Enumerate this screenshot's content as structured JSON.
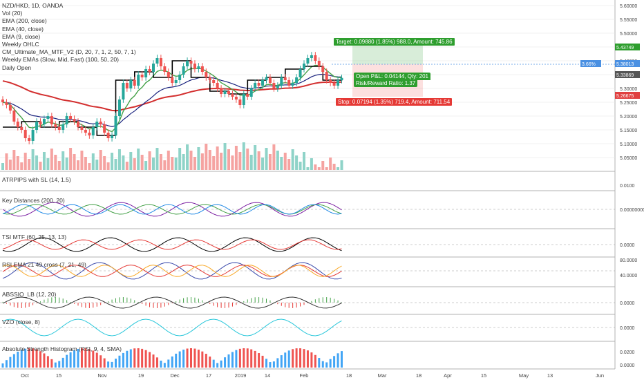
{
  "chart_data": {
    "type": "candlestick",
    "title": "NZD/HKD, 1D, OANDA",
    "main_legend": [
      "Vol (20)",
      "EMA (200, close)",
      "EMA (40, close)",
      "EMA (9, close)",
      "Weekly OHLC",
      "CM_Ultimate_MA_MTF_V2 (D, 20, 7, 1, 2, 50, 7, 1)",
      "Weekly EMAs (Slow, Mid, Fast) (100, 50, 20)",
      "Daily Open"
    ],
    "price_axis": [
      "5.60000",
      "5.55000",
      "5.50000",
      "5.45000",
      "5.40000",
      "5.35000",
      "5.30000",
      "5.25000",
      "5.20000",
      "5.15000",
      "5.10000",
      "5.05000"
    ],
    "price_labels": [
      {
        "text": "5.43749",
        "color": "#2e9e2e"
      },
      {
        "text": "5.38013",
        "color": "#4a90e2"
      },
      {
        "text": "3.66%",
        "color": "#4a90e2"
      },
      {
        "text": "5.33869",
        "color": "#555555"
      },
      {
        "text": "5.26675",
        "color": "#e04040"
      }
    ],
    "trade_tags": {
      "target": "Target: 0.09880 (1.85%) 988.0, Amount: 745.86",
      "open": "Open P&L: 0.04144, Qty: 201",
      "risk": "Risk/Reward Ratio: 1.37",
      "stop": "Stop: 0.07194 (1.35%) 719.4, Amount: 711.54"
    },
    "x_ticks": [
      "Oct",
      "15",
      "Nov",
      "19",
      "Dec",
      "17",
      "2019",
      "14",
      "Feb",
      "18",
      "Mar",
      "18",
      "Apr",
      "15",
      "May",
      "13",
      "Jun"
    ],
    "indicator_panels": [
      {
        "name": "ATRPIPS with SL (14, 1.5)",
        "axis": [
          "0.0100"
        ]
      },
      {
        "name": "Key Distances (200, 20)",
        "axis": [
          "0.00000000"
        ]
      },
      {
        "name": "TSI MTF (60, 25, 13, 13)",
        "axis": [
          "0.0000"
        ]
      },
      {
        "name": "RSI EMA 21 49 cross (7, 21, 49)",
        "axis": [
          "80.0000",
          "40.0000"
        ]
      },
      {
        "name": "ABSSIO_LB (12, 20)",
        "axis": [
          "0.0000"
        ]
      },
      {
        "name": "VZO (close, 8)",
        "axis": [
          "0.0000"
        ]
      },
      {
        "name": "Absolute Strength Histogram (RSI, 9, 4, SMA)",
        "axis": [
          "0.0200",
          "0.0000"
        ]
      }
    ],
    "ylim": [
      5.02,
      5.62
    ],
    "closes": [
      5.25,
      5.24,
      5.22,
      5.18,
      5.16,
      5.15,
      5.12,
      5.11,
      5.15,
      5.18,
      5.17,
      5.19,
      5.2,
      5.17,
      5.16,
      5.15,
      5.17,
      5.2,
      5.19,
      5.18,
      5.16,
      5.15,
      5.14,
      5.13,
      5.16,
      5.18,
      5.17,
      5.14,
      5.12,
      5.13,
      5.2,
      5.26,
      5.32,
      5.3,
      5.33,
      5.31,
      5.35,
      5.34,
      5.37,
      5.36,
      5.39,
      5.41,
      5.38,
      5.36,
      5.34,
      5.32,
      5.33,
      5.35,
      5.38,
      5.4,
      5.39,
      5.37,
      5.38,
      5.36,
      5.34,
      5.33,
      5.32,
      5.3,
      5.28,
      5.29,
      5.28,
      5.27,
      5.26,
      5.24,
      5.28,
      5.27,
      5.3,
      5.32,
      5.31,
      5.33,
      5.34,
      5.32,
      5.3,
      5.31,
      5.34,
      5.33,
      5.31,
      5.32,
      5.34,
      5.37,
      5.39,
      5.41,
      5.42,
      5.4,
      5.38,
      5.36,
      5.33,
      5.32,
      5.31,
      5.33,
      5.338
    ]
  },
  "colors": {
    "up": "#26a69a",
    "down": "#ef5350",
    "ema200": "#d32f2f",
    "ema40": "#1a237e",
    "ema9": "#43a047",
    "weekly": "#000000",
    "grid": "#e6e6e6"
  }
}
